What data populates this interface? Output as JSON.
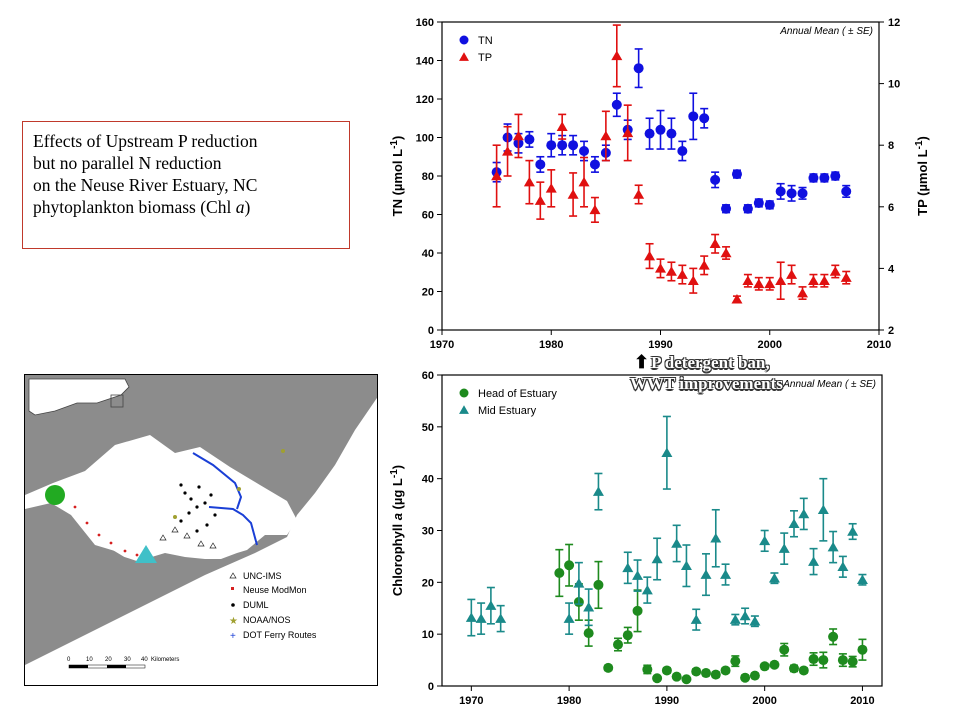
{
  "caption": {
    "lines": [
      "Effects of Upstream P reduction",
      "but no parallel N reduction",
      "on the Neuse River Estuary, NC",
      "phytoplankton biomass (Chl "
    ],
    "italic_suffix": "a",
    "close": ")"
  },
  "annotation": {
    "line1": "P detergent ban,",
    "line2": "WWT improvements",
    "arrow": "up-arrow-icon"
  },
  "map": {
    "legend": [
      "UNC-IMS",
      "Neuse ModMon",
      "DUML",
      "NOAA/NOS",
      "DOT Ferry Routes"
    ],
    "scale_ticks": [
      "0",
      "10",
      "20",
      "30",
      "40"
    ],
    "scale_unit": "Kilometers",
    "colors": {
      "land": "#8c8c8c",
      "water": "#ffffff",
      "head_marker": "#22aa22",
      "mid_marker": "#40c0c8",
      "ferry": "#1a3fd6",
      "modmon": "#d62020",
      "noaa": "#a0a030"
    }
  },
  "chart_data": [
    {
      "type": "scatter",
      "note": "Annual Mean ( ± SE)",
      "xlabel": "",
      "ylabel": "TN (µmol L",
      "ylabel_sup": "-1",
      "ylabel_close": ")",
      "y2label": "TP (µmol L",
      "y2label_sup": "-1",
      "y2label_close": ")",
      "xlim": [
        1970,
        2010
      ],
      "ylim": [
        0,
        160
      ],
      "y2lim": [
        2,
        12
      ],
      "xticks": [
        "1970",
        "1980",
        "1990",
        "2000",
        "2010"
      ],
      "yticks": [
        "0",
        "20",
        "40",
        "60",
        "80",
        "100",
        "120",
        "140",
        "160"
      ],
      "y2ticks": [
        "2",
        "4",
        "6",
        "8",
        "10",
        "12"
      ],
      "legend": [
        "TN",
        "TP"
      ],
      "colors": [
        "#1010e0",
        "#e01010"
      ],
      "series": [
        {
          "name": "TN",
          "axis": "left",
          "marker": "circle",
          "x": [
            1975,
            1976,
            1977,
            1978,
            1979,
            1980,
            1981,
            1982,
            1983,
            1984,
            1985,
            1986,
            1987,
            1988,
            1989,
            1990,
            1991,
            1992,
            1993,
            1994,
            1995,
            1996,
            1997,
            1998,
            1999,
            2000,
            2001,
            2002,
            2003,
            2004,
            2005,
            2006,
            2007
          ],
          "y": [
            82,
            100,
            97,
            99,
            86,
            96,
            96,
            96,
            93,
            86,
            92,
            117,
            104,
            136,
            102,
            104,
            102,
            93,
            111,
            110,
            78,
            63,
            81,
            63,
            66,
            65,
            72,
            71,
            71,
            79,
            79,
            80,
            72
          ],
          "err": [
            5,
            7,
            5,
            4,
            4,
            6,
            5,
            5,
            5,
            4,
            4,
            6,
            5,
            10,
            8,
            10,
            8,
            5,
            12,
            5,
            4,
            2,
            2,
            2,
            2,
            2,
            4,
            4,
            3,
            2,
            2,
            2,
            3
          ]
        },
        {
          "name": "TP",
          "axis": "right",
          "marker": "triangle",
          "x": [
            1975,
            1976,
            1977,
            1978,
            1979,
            1980,
            1981,
            1982,
            1983,
            1984,
            1985,
            1986,
            1987,
            1988,
            1989,
            1990,
            1991,
            1992,
            1993,
            1994,
            1995,
            1996,
            1997,
            1998,
            1999,
            2000,
            2001,
            2002,
            2003,
            2004,
            2005,
            2006,
            2007
          ],
          "y": [
            7.0,
            7.8,
            8.3,
            6.8,
            6.2,
            6.6,
            8.6,
            6.4,
            6.8,
            5.9,
            8.3,
            10.9,
            8.4,
            6.4,
            4.4,
            4.0,
            3.9,
            3.8,
            3.6,
            4.1,
            4.8,
            4.5,
            3.0,
            3.6,
            3.5,
            3.5,
            3.6,
            3.8,
            3.2,
            3.6,
            3.6,
            3.9,
            3.7
          ],
          "err": [
            1.0,
            0.8,
            0.7,
            0.7,
            0.6,
            0.6,
            0.4,
            0.7,
            0.8,
            0.4,
            0.8,
            1.0,
            0.9,
            0.3,
            0.4,
            0.3,
            0.3,
            0.3,
            0.4,
            0.3,
            0.3,
            0.2,
            0.1,
            0.2,
            0.2,
            0.2,
            0.6,
            0.3,
            0.2,
            0.2,
            0.2,
            0.2,
            0.2
          ]
        }
      ]
    },
    {
      "type": "scatter",
      "note": "Annual Mean ( ± SE)",
      "xlabel": "",
      "ylabel": "Chlorophyll ",
      "ylabel_italic": "a",
      "ylabel_rest": " (µg L",
      "ylabel_sup": "-1",
      "ylabel_close": ")",
      "xlim": [
        1967,
        2012
      ],
      "ylim": [
        0,
        60
      ],
      "xticks": [
        "1970",
        "1980",
        "1990",
        "2000",
        "2010"
      ],
      "yticks": [
        "0",
        "10",
        "20",
        "30",
        "40",
        "50",
        "60"
      ],
      "legend": [
        "Head of Estuary",
        "Mid Estuary"
      ],
      "colors": [
        "#1e8a1e",
        "#1a8a8a"
      ],
      "series": [
        {
          "name": "Head of Estuary",
          "marker": "circle",
          "x": [
            1979,
            1980,
            1981,
            1982,
            1983,
            1984,
            1985,
            1986,
            1987,
            1988,
            1989,
            1990,
            1991,
            1992,
            1993,
            1994,
            1995,
            1996,
            1997,
            1998,
            1999,
            2000,
            2001,
            2002,
            2003,
            2004,
            2005,
            2006,
            2007,
            2008,
            2009,
            2010
          ],
          "y": [
            21.8,
            23.3,
            16.2,
            10.2,
            19.5,
            3.5,
            8.0,
            9.8,
            14.5,
            3.2,
            1.5,
            3.0,
            1.8,
            1.3,
            2.8,
            2.5,
            2.2,
            3.0,
            4.8,
            1.6,
            2.0,
            3.8,
            4.1,
            7.0,
            3.4,
            3.0,
            5.2,
            5.0,
            9.5,
            5.0,
            4.7,
            7.0
          ],
          "err": [
            4.5,
            4.0,
            3.5,
            2.5,
            4.5,
            0.5,
            1.2,
            1.5,
            4.0,
            0.8,
            0.4,
            0.5,
            0.4,
            0.3,
            0.5,
            0.5,
            0.5,
            0.5,
            1.0,
            0.4,
            0.4,
            0.5,
            0.5,
            1.2,
            0.6,
            0.5,
            1.2,
            1.5,
            1.5,
            1.2,
            1.0,
            2.0
          ]
        },
        {
          "name": "Mid Estuary",
          "marker": "triangle",
          "x": [
            1970,
            1971,
            1972,
            1973,
            1980,
            1981,
            1982,
            1983,
            1986,
            1987,
            1988,
            1989,
            1990,
            1991,
            1992,
            1993,
            1994,
            1995,
            1996,
            1997,
            1998,
            1999,
            2000,
            2001,
            2002,
            2003,
            2004,
            2005,
            2006,
            2007,
            2008,
            2009,
            2010
          ],
          "y": [
            13.2,
            13.0,
            15.5,
            13.0,
            13.0,
            19.8,
            15.2,
            37.5,
            22.8,
            21.3,
            18.5,
            24.5,
            45.0,
            27.5,
            23.2,
            12.8,
            21.5,
            28.5,
            21.5,
            12.8,
            13.5,
            12.5,
            28.0,
            20.8,
            26.5,
            31.3,
            33.2,
            24.0,
            34.0,
            26.8,
            23.0,
            29.8,
            20.5
          ],
          "err": [
            3.5,
            3.0,
            3.5,
            2.5,
            3.0,
            4.0,
            3.5,
            3.5,
            3.0,
            3.0,
            2.5,
            4.0,
            7.0,
            3.5,
            4.0,
            2.0,
            4.0,
            5.5,
            2.0,
            1.0,
            1.5,
            1.0,
            2.0,
            1.0,
            3.0,
            2.5,
            3.0,
            2.5,
            6.0,
            3.0,
            2.0,
            1.5,
            1.0
          ]
        }
      ]
    }
  ]
}
